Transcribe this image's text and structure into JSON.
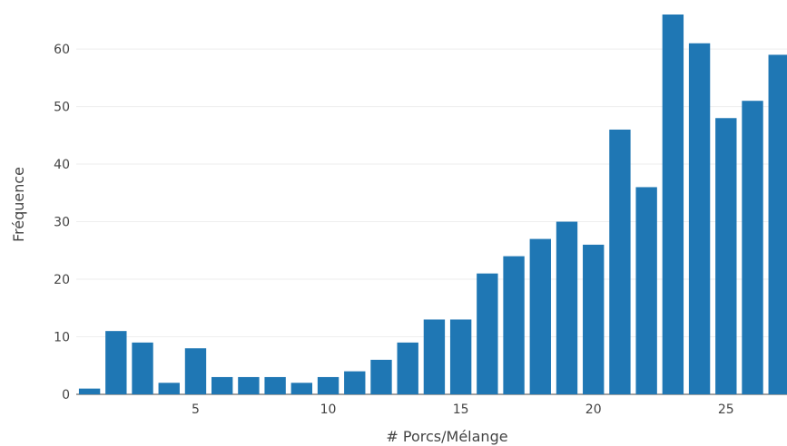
{
  "chart_data": {
    "type": "bar",
    "title": "",
    "xlabel": "# Porcs/Mélange",
    "ylabel": "Fréquence",
    "x": [
      1,
      2,
      3,
      4,
      5,
      6,
      7,
      8,
      9,
      10,
      11,
      12,
      13,
      14,
      15,
      16,
      17,
      18,
      19,
      20,
      21,
      22,
      23,
      24,
      25,
      26,
      27
    ],
    "values": [
      1,
      11,
      9,
      2,
      8,
      3,
      3,
      3,
      2,
      3,
      4,
      6,
      9,
      13,
      13,
      21,
      24,
      27,
      30,
      26,
      46,
      36,
      66,
      61,
      48,
      51,
      59
    ],
    "x_ticks": [
      "5",
      "10",
      "15",
      "20",
      "25"
    ],
    "y_ticks": [
      "0",
      "10",
      "20",
      "30",
      "40",
      "50",
      "60"
    ],
    "xlim": [
      0.5,
      27.3
    ],
    "ylim": [
      0,
      66
    ],
    "grid": "horizontal",
    "bar_color": "#1f77b4"
  }
}
